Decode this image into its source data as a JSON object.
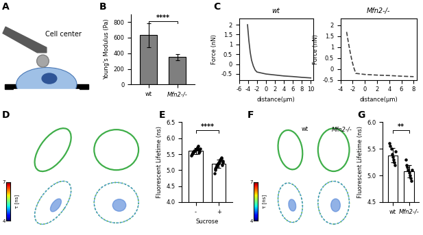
{
  "panel_labels": [
    "A",
    "B",
    "C",
    "D",
    "E",
    "F",
    "G"
  ],
  "schematic": {
    "label": "Cell center"
  },
  "images": [
    {
      "colorbar": {
        "lim": [
          4,
          7
        ],
        "ticks": [
          4,
          7
        ],
        "label": "τ [ns]"
      }
    },
    {
      "column_labels": [
        "wt",
        "Mfn2-/-"
      ],
      "colorbar": {
        "lim": [
          4,
          7
        ],
        "ticks": [
          4,
          7
        ],
        "label": "τ [ns]"
      }
    }
  ],
  "chart_data": [
    {
      "type": "bar",
      "categories": [
        "wt",
        "Mfn2-/-"
      ],
      "values": [
        630,
        350
      ],
      "errors": [
        150,
        40
      ],
      "color": "#7f7f7f",
      "ylabel": "Young's Modulus (Pa)",
      "ylim": [
        0,
        900
      ],
      "yticks": [
        0,
        200,
        400,
        600,
        800
      ],
      "significance": "****"
    },
    {
      "type": "line",
      "title": "wt",
      "xlabel": "distance(μm)",
      "ylabel": "Force (nN)",
      "series": [
        {
          "x": [
            -4.1,
            -3.8,
            -3.5,
            -3.2,
            -2.8,
            -2.4,
            -2.0,
            0,
            2,
            4,
            6,
            8,
            10
          ],
          "values": [
            2.0,
            1.2,
            0.6,
            0.2,
            -0.1,
            -0.3,
            -0.4,
            -0.5,
            -0.55,
            -0.6,
            -0.63,
            -0.67,
            -0.7
          ],
          "color": "#404040",
          "line_style": "solid"
        }
      ],
      "xlim": [
        -6,
        10.5
      ],
      "xticks": [
        -6,
        -4,
        -2,
        0,
        2,
        4,
        6,
        8,
        10
      ],
      "ylim": [
        -0.8,
        2.3
      ],
      "yticks": [
        -0.5,
        0,
        0.5,
        1,
        1.5,
        2
      ]
    },
    {
      "type": "line",
      "title": "Mfn2-/-",
      "xlabel": "distance(μm)",
      "ylabel": "Force (nN)",
      "series": [
        {
          "x": [
            -3.0,
            -2.7,
            -2.4,
            -2.1,
            -1.8,
            -1.5,
            0,
            2,
            4,
            6,
            8
          ],
          "values": [
            1.7,
            1.2,
            0.75,
            0.35,
            0.05,
            -0.2,
            -0.25,
            -0.28,
            -0.3,
            -0.33,
            -0.35
          ],
          "color": "#404040",
          "line_style": "dashed"
        }
      ],
      "xlim": [
        -4,
        8.5
      ],
      "xticks": [
        -4,
        -2,
        0,
        2,
        4,
        6,
        8
      ],
      "ylim": [
        -0.5,
        2.3
      ],
      "yticks": [
        -0.5,
        0,
        0.5,
        1,
        1.5,
        2
      ]
    },
    {
      "type": "bar",
      "categories": [
        "-",
        "+"
      ],
      "values": [
        5.6,
        5.2
      ],
      "errors": [
        0.1,
        0.12
      ],
      "points": [
        [
          5.45,
          5.5,
          5.52,
          5.55,
          5.57,
          5.58,
          5.6,
          5.6,
          5.62,
          5.63,
          5.65,
          5.66,
          5.68,
          5.7,
          5.72,
          5.75,
          5.55,
          5.62,
          5.58,
          5.67
        ],
        [
          4.9,
          5.0,
          5.05,
          5.1,
          5.12,
          5.15,
          5.18,
          5.2,
          5.2,
          5.22,
          5.25,
          5.27,
          5.3,
          5.32,
          5.35,
          5.38,
          5.4,
          5.15,
          5.25,
          5.28
        ]
      ],
      "color": "#ffffff",
      "xlabel": "Sucrose",
      "ylabel": "Fluorescent Lifetime (ns)",
      "ylim": [
        4.0,
        6.5
      ],
      "yticks": [
        {
          "value": 4.0,
          "label": "4.0"
        },
        {
          "value": 4.5,
          "label": "4.5"
        },
        {
          "value": 5.0,
          "label": "5.0"
        },
        {
          "value": 5.5,
          "label": "5.5"
        },
        {
          "value": 6.0,
          "label": "6.0"
        },
        {
          "value": 6.5,
          "label": "6.5"
        }
      ],
      "significance": "****"
    },
    {
      "type": "bar",
      "categories": [
        "wt",
        "Mfn2-/-"
      ],
      "values": [
        5.38,
        5.08
      ],
      "errors": [
        0.14,
        0.12
      ],
      "points": [
        [
          5.6,
          5.55,
          5.5,
          5.4,
          5.35,
          5.3,
          5.25,
          5.2,
          5.45
        ],
        [
          5.3,
          5.2,
          5.15,
          5.1,
          5.05,
          5.0,
          4.95,
          4.9,
          5.1
        ]
      ],
      "color": "#ffffff",
      "ylabel": "Fluorescent Lifetime (ns)",
      "ylim": [
        4.5,
        6.0
      ],
      "yticks": [
        {
          "value": 4.5,
          "label": "4.5"
        },
        {
          "value": 5.0,
          "label": "5.0"
        },
        {
          "value": 5.5,
          "label": "5.5"
        },
        {
          "value": 6.0,
          "label": "6.0"
        }
      ],
      "significance": "**"
    }
  ]
}
